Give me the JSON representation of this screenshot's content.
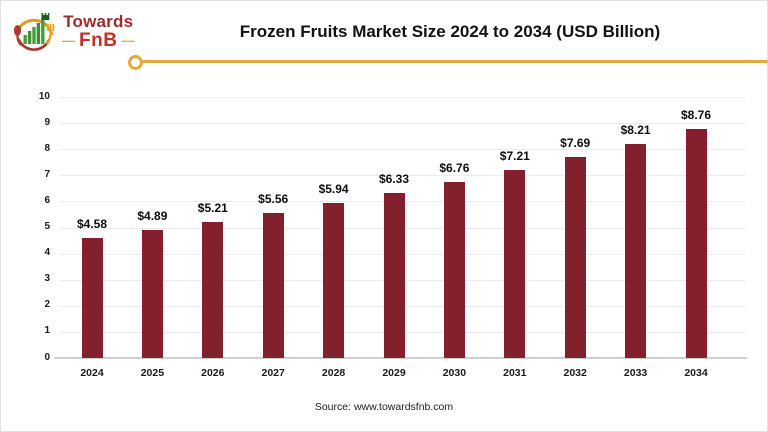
{
  "header": {
    "title": "Frozen Fruits Market Size 2024 to 2034 (USD Billion)",
    "logo": {
      "brand_top": "Towards",
      "brand_bottom": "FnB",
      "dash_left": "—",
      "dash_right": "—"
    }
  },
  "chart_data": {
    "type": "bar",
    "title": "Frozen Fruits Market Size 2024 to 2034 (USD Billion)",
    "categories": [
      "2024",
      "2025",
      "2026",
      "2027",
      "2028",
      "2029",
      "2030",
      "2031",
      "2032",
      "2033",
      "2034"
    ],
    "values": [
      4.58,
      4.89,
      5.21,
      5.56,
      5.94,
      6.33,
      6.76,
      7.21,
      7.69,
      8.21,
      8.76
    ],
    "value_labels": [
      "$4.58",
      "$4.89",
      "$5.21",
      "$5.56",
      "$5.94",
      "$6.33",
      "$6.76",
      "$7.21",
      "$7.69",
      "$8.21",
      "$8.76"
    ],
    "ylim": [
      0,
      10
    ],
    "yticks": [
      0,
      1,
      2,
      3,
      4,
      5,
      6,
      7,
      8,
      9,
      10
    ],
    "grid": true,
    "legend": "none",
    "xlabel": "",
    "ylabel": ""
  },
  "footer": {
    "source": "Source: www.towardsfnb.com"
  },
  "colors": {
    "bar": "#82202E",
    "accent_gold": "#E3A93B",
    "brand_dark_red": "#9A2C2C",
    "brand_red": "#C23128",
    "logo_green": "#4C9A3F",
    "logo_dark_green": "#1E5B22",
    "gridline": "#ECECEC",
    "axis_line": "#CFCFCF"
  }
}
